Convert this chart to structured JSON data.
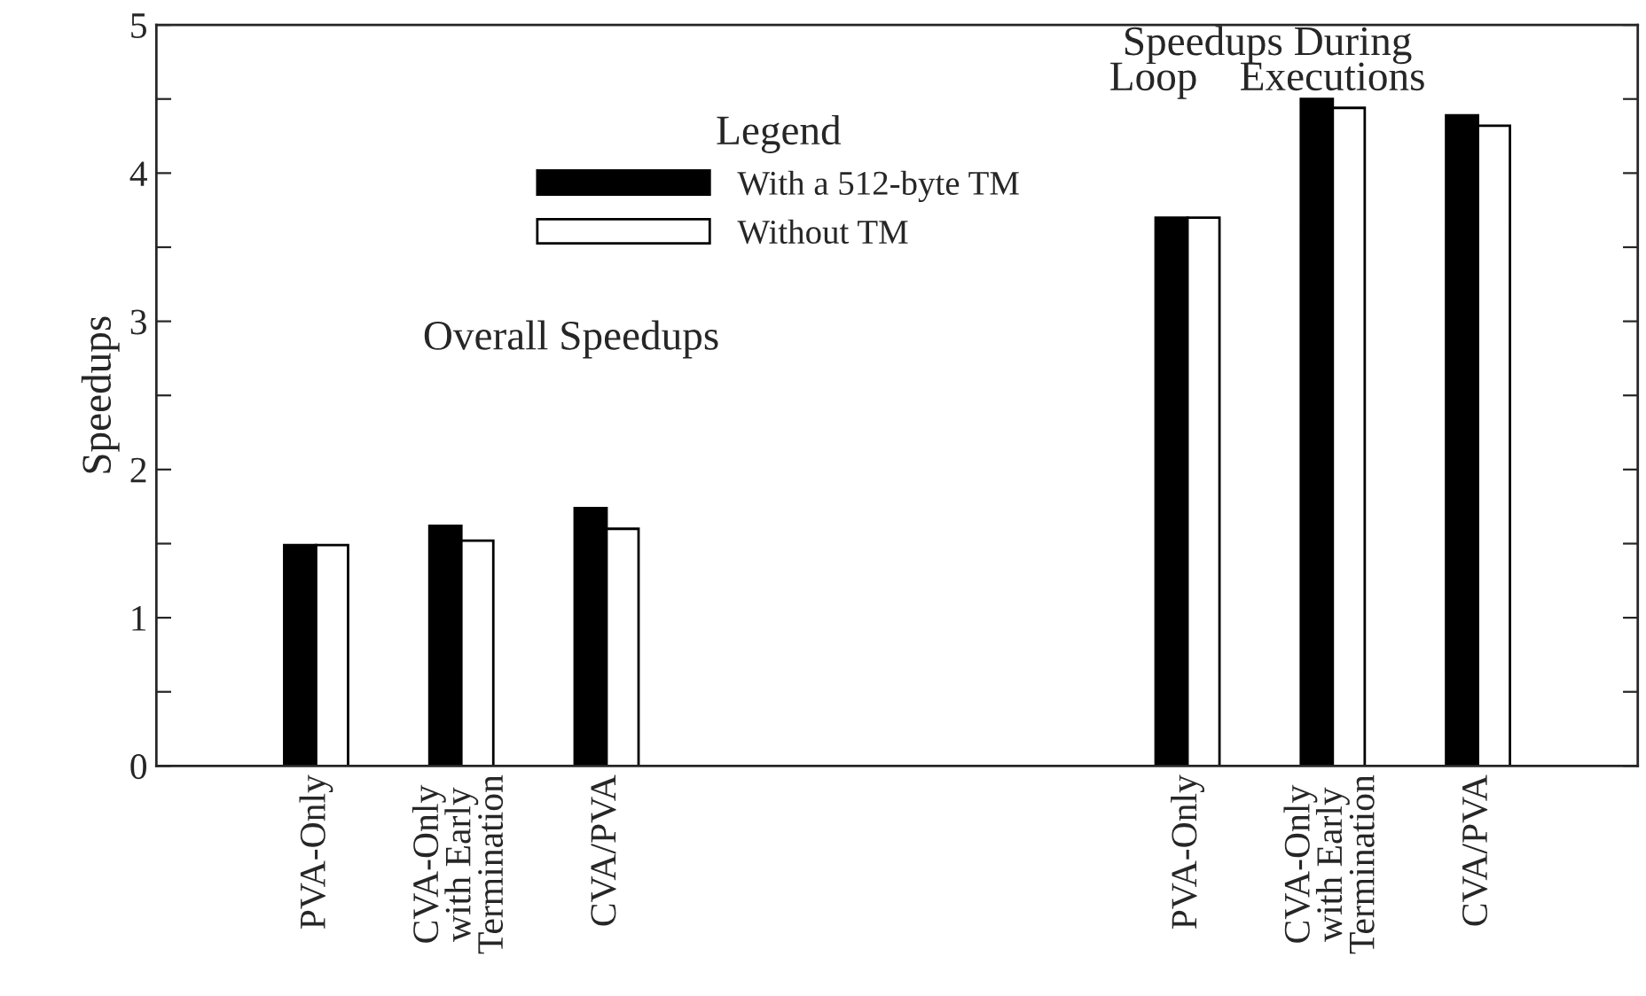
{
  "chart_data": {
    "type": "bar",
    "ylabel": "Speedups",
    "legend_title": "Legend",
    "categories": [
      "PVA-Only",
      "CVA-Only\nwith Early\nTermination",
      "CVA/PVA",
      null,
      null,
      null,
      "PVA-Only",
      "CVA-Only\nwith Early\nTermination",
      "CVA/PVA"
    ],
    "series": [
      {
        "name": "With a 512-byte TM",
        "color": "#000000",
        "values": [
          1.49,
          1.62,
          1.74,
          null,
          null,
          null,
          3.7,
          4.5,
          4.39
        ]
      },
      {
        "name": "Without TM",
        "color": "#ffffff",
        "values": [
          1.49,
          1.52,
          1.6,
          null,
          null,
          null,
          3.7,
          4.44,
          4.32
        ]
      }
    ],
    "ylim": [
      0,
      5
    ],
    "yticks": [
      0,
      {
        "value": 0.5,
        "label": null
      },
      1,
      {
        "value": 1.5,
        "label": null
      },
      2,
      {
        "value": 2.5,
        "label": null
      },
      3,
      {
        "value": 3.5,
        "label": null
      },
      4,
      {
        "value": 4.5,
        "label": null
      },
      5
    ],
    "annotations": [
      "Overall Speedups",
      "Speedups During\nLoop    Executions"
    ],
    "legend": "top",
    "grid": false
  }
}
